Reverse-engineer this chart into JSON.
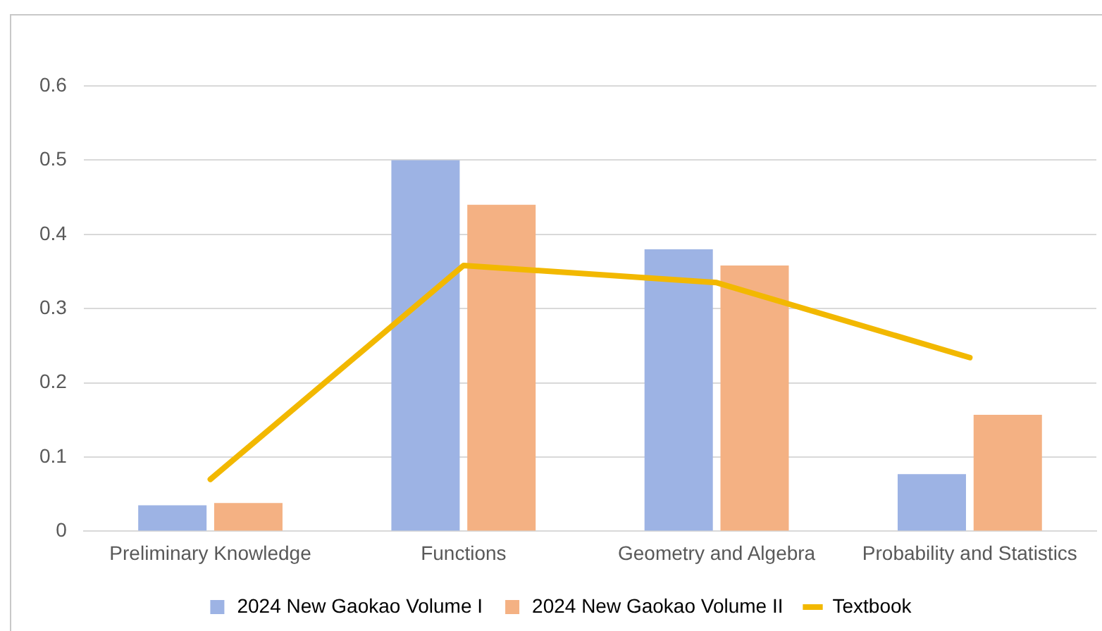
{
  "chart_data": {
    "type": "bar",
    "categories": [
      "Preliminary Knowledge",
      "Functions",
      "Geometry and Algebra",
      "Probability and Statistics"
    ],
    "series": [
      {
        "name": "2024 New Gaokao Volume I",
        "color": "#9db3e4",
        "values": [
          0.035,
          0.5,
          0.38,
          0.077
        ]
      },
      {
        "name": "2024 New Gaokao Volume II",
        "color": "#f4b183",
        "values": [
          0.038,
          0.44,
          0.358,
          0.157
        ]
      },
      {
        "name": "Textbook",
        "type": "line",
        "color": "#f2b800",
        "values": [
          0.07,
          0.358,
          0.335,
          0.234
        ]
      }
    ],
    "ylim": [
      0,
      0.6
    ],
    "yticks": [
      0,
      0.1,
      0.2,
      0.3,
      0.4,
      0.5,
      0.6
    ],
    "grid": "y",
    "legend": "bottom",
    "marker": "none"
  }
}
